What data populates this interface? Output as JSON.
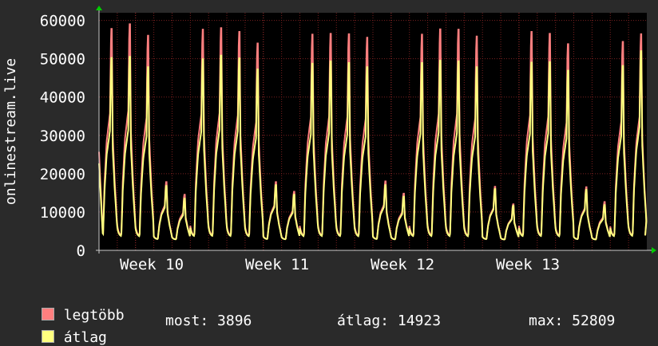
{
  "chart_data": {
    "type": "line",
    "ylabel": "onlinestream.live",
    "ylim": [
      0,
      62000
    ],
    "y_ticks": [
      0,
      10000,
      20000,
      30000,
      40000,
      50000,
      60000
    ],
    "y_tick_labels": [
      "0",
      "10000",
      "20000",
      "30000",
      "40000",
      "50000",
      "60000"
    ],
    "x_ticks": [
      "Week 10",
      "Week 11",
      "Week 12",
      "Week 13"
    ],
    "grid": true,
    "background": "#000000",
    "days": 30,
    "series": [
      {
        "name": "legtöbb",
        "color": "#ff7f7f",
        "daily_peaks": [
          57800,
          59000,
          56000,
          17800,
          14500,
          57600,
          58000,
          57000,
          54000,
          17800,
          15300,
          56300,
          56500,
          56400,
          55500,
          18000,
          14800,
          56300,
          57700,
          57600,
          55800,
          16600,
          12000,
          57000,
          56500,
          53800,
          16500,
          12600,
          54400,
          56400
        ]
      },
      {
        "name": "átlag",
        "color": "#ffff7f",
        "daily_peaks": [
          50200,
          50500,
          47800,
          16800,
          13500,
          49900,
          50800,
          50100,
          47200,
          17000,
          14500,
          48700,
          49300,
          48900,
          47800,
          17000,
          14000,
          48900,
          49500,
          49300,
          47800,
          16000,
          11600,
          49000,
          49100,
          46900,
          15800,
          11800,
          48100,
          52000
        ]
      }
    ],
    "daily_baseline": 2600,
    "end_value": 3896
  },
  "legend": [
    {
      "label": "legtöbb",
      "color": "#ff7f7f"
    },
    {
      "label": "átlag",
      "color": "#ffff7f"
    }
  ],
  "stats": {
    "current": "most: 3896",
    "average": "átlag: 14923",
    "max": "max: 52809"
  }
}
